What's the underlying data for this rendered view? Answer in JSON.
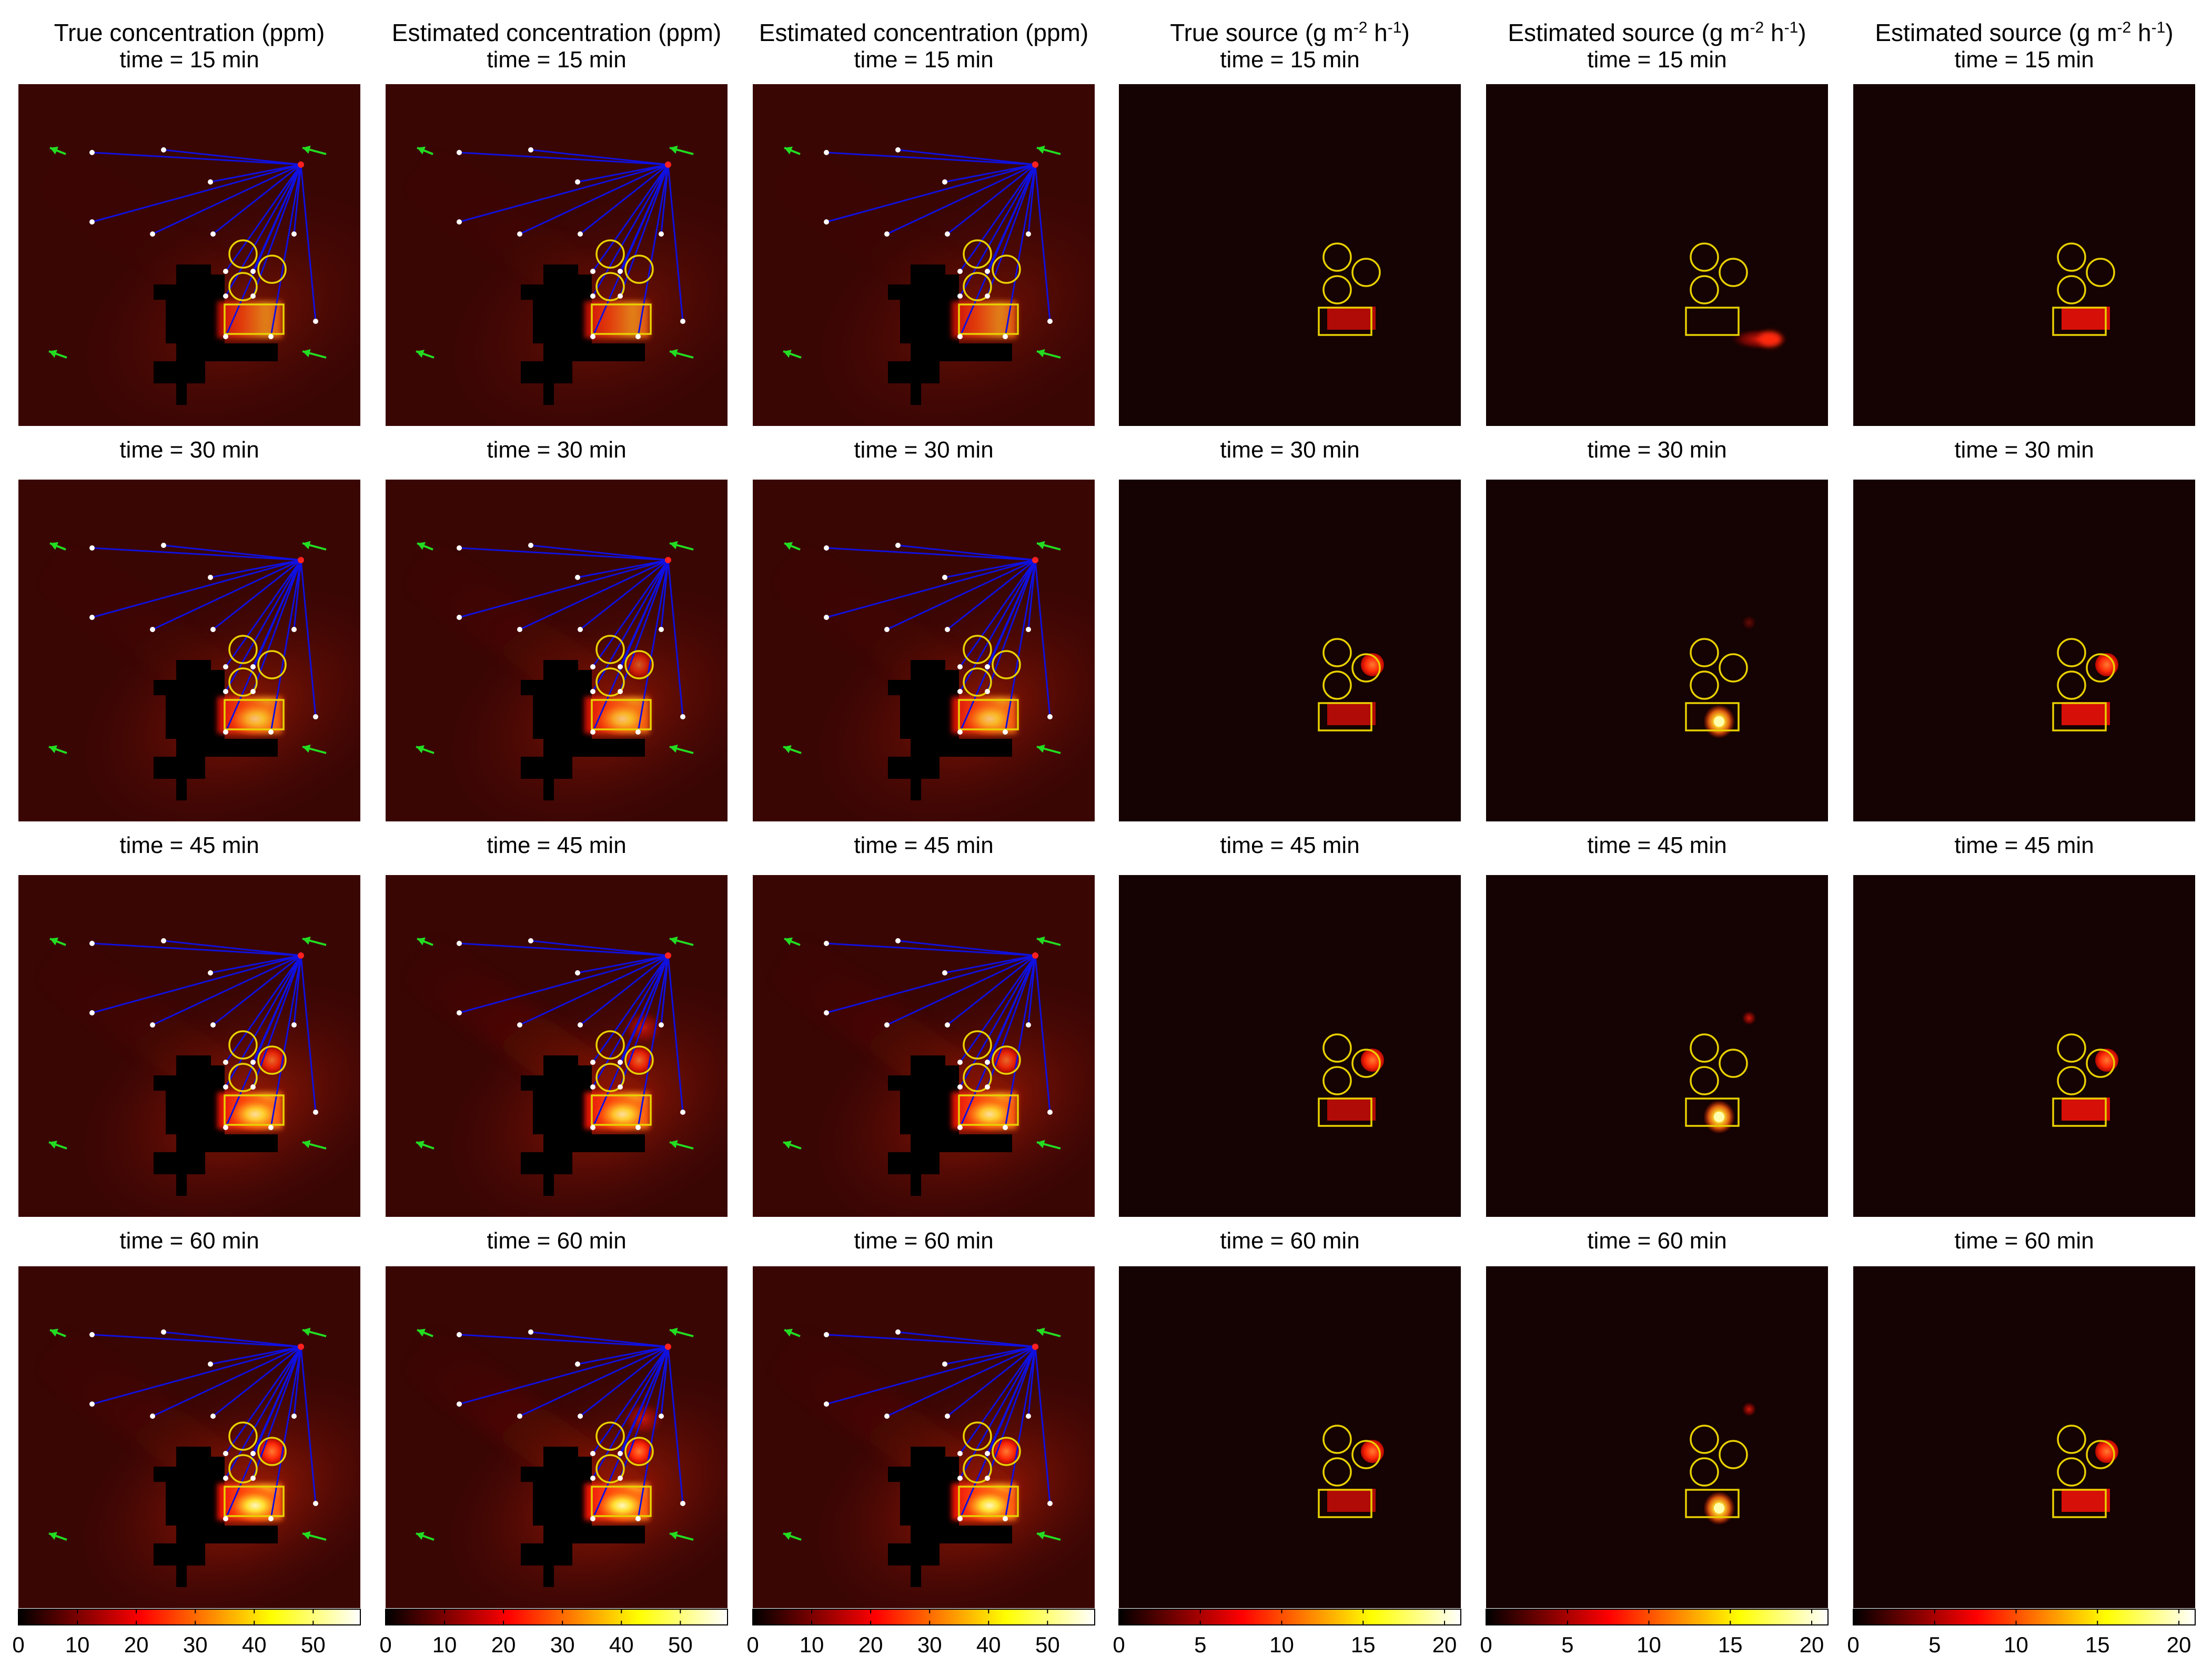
{
  "chart_data": {
    "type": "heatmap",
    "columns": [
      {
        "title": "True concentration (ppm)",
        "kind": "concentration",
        "variant": "true"
      },
      {
        "title": "Estimated concentration (ppm)",
        "kind": "concentration",
        "variant": "estimated_a"
      },
      {
        "title": "Estimated concentration (ppm)",
        "kind": "concentration",
        "variant": "estimated_b"
      },
      {
        "title": "True source (g m^-2 h^-1)",
        "kind": "source",
        "variant": "true"
      },
      {
        "title": "Estimated source (g m^-2 h^-1)",
        "kind": "source",
        "variant": "estimated_a"
      },
      {
        "title": "Estimated source (g m^-2 h^-1)",
        "kind": "source",
        "variant": "estimated_b"
      }
    ],
    "times": [
      {
        "label": "time = 15 min",
        "minutes": 15
      },
      {
        "label": "time = 30 min",
        "minutes": 30
      },
      {
        "label": "time = 45 min",
        "minutes": 45
      },
      {
        "label": "time = 60 min",
        "minutes": 60
      }
    ],
    "colormap": "hot",
    "colorbars": {
      "concentration": {
        "range": [
          0,
          58
        ],
        "ticks": [
          "0",
          "10",
          "20",
          "30",
          "40",
          "50"
        ]
      },
      "source": {
        "range": [
          0,
          21
        ],
        "ticks": [
          "0",
          "5",
          "10",
          "15",
          "20"
        ]
      }
    },
    "colors": {
      "rays": "#1010e0",
      "source_outline": "#e8d000",
      "wind_arrow": "#22dd22",
      "sensor": "#ffffff",
      "laser_origin": "#ff2020",
      "building": "#000000"
    }
  }
}
